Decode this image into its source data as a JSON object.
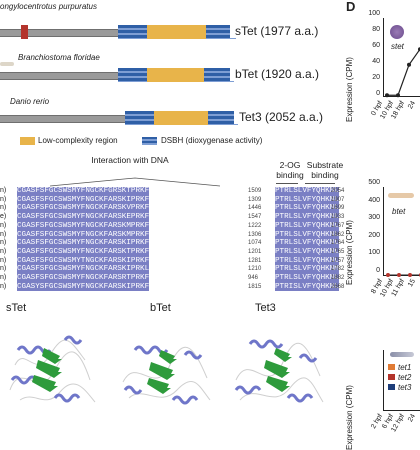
{
  "panel_d_label": "D",
  "domain_panel": {
    "species": [
      {
        "name": "ongylocentrotus purpuratus",
        "label": "sTet (1977 a.a.)"
      },
      {
        "name": "Branchiostoma floridae",
        "label": "bTet (1920 a.a.)"
      },
      {
        "name": "Danio rerio",
        "label": "Tet3 (2052 a.a.)"
      }
    ],
    "legend": {
      "lowcomplexity": "Low-complexity region",
      "dsbh": "DSBH (dioxygenase activity)"
    },
    "colors": {
      "lowcomplexity": "#e8b44a",
      "dsbh": "#2f5fa6",
      "backbone": "#8a8a8a",
      "red_domain": "#b3342c"
    }
  },
  "alignment": {
    "header_dna": "Interaction with DNA",
    "header_2og": "2-OG binding",
    "header_substrate": "Substrate binding",
    "row_labels": [
      "n)",
      "n)",
      "n)",
      "e)",
      "n)",
      "n)",
      "n)",
      "n)",
      "n)",
      "n)",
      "n)",
      "n)"
    ],
    "left_seqs": [
      "CGASFSFGCSWSMYFNGCKFGRSKTPRKF",
      "CGASFSFGCSWSMYFNGCKFARSKIPRKF",
      "CGASFSFGCSWSMYFNGCKFARSKVPRKF",
      "CGASFSFGCSWSMYFNGCKFARSKEPRKF",
      "CGASFSFGCSWSMYFNGCKFARSKMPRKF",
      "CGASFSFGCSWSMYFNGCKFARSKMPRKF",
      "CGASFSFGCSWSMYFNGCKFARSKIPRKF",
      "CGASFSFGCSWSMYFNGCKFARSKTPRKF",
      "CGASFSFGCSWSMYTNGCKFARSKIPRKF",
      "CGASFSFGCSWSMYFNGCKFARSKIPRKL",
      "CGASFSFGCSWSMYFNGCKFARSRTPRKF",
      "CGASYSFGCSWSMYFNGCKFARSKIPRKF"
    ],
    "left_nums": [
      "1509",
      "1309",
      "1446",
      "1547",
      "1222",
      "1306",
      "1074",
      "1201",
      "1281",
      "1210",
      "946",
      "1815"
    ],
    "right_seqs": [
      "PTRLSLVFYQHKNL",
      "PTRLSLVFYQHKNL",
      "PTRLSLVFYQHKNL",
      "PTRLSLVFYQHKNL",
      "PTRLSLVFYQHKNL",
      "PTRLSLVFYQHKNL",
      "PTRLSLVFYQHKNL",
      "PTRLSLVFYQHKNL",
      "PTRLSLVFYQHKNL",
      "PTRLSLVFYQHKNM",
      "PTRLSLVFYQHKNL",
      "PTRISLVFYQHKNL"
    ],
    "right_nums": [
      "2054",
      "1907",
      "1699",
      "1933",
      "1767",
      "1862",
      "1764",
      "1765",
      "1757",
      "1782",
      "1882",
      "2668"
    ],
    "colors": {
      "conserved": "#7a7fc4",
      "header_line": "#555555"
    }
  },
  "structures": {
    "labels": [
      "sTet",
      "bTet",
      "Tet3"
    ],
    "colors": {
      "helix": "#6f76c9",
      "sheet": "#2e9b3c",
      "coil": "#c8c8c8"
    }
  },
  "expression_panels": {
    "ylabel": "Expression (CPM)",
    "top": {
      "gene": "stet",
      "yticks": [
        "0",
        "20",
        "40",
        "60",
        "80",
        "100"
      ],
      "xticks": [
        "0 hpf",
        "10 hpf",
        "18 hpf",
        "24"
      ],
      "values": [
        1,
        1,
        40,
        60
      ]
    },
    "middle": {
      "gene": "btet",
      "yticks": [
        "0",
        "100",
        "200",
        "300",
        "400",
        "500"
      ],
      "xticks": [
        "8 hpf",
        "10 hpf",
        "11 hpf",
        "15"
      ]
    },
    "bottom": {
      "genes": [
        "tet1",
        "tet2",
        "tet3"
      ],
      "gene_colors": [
        "#e07b35",
        "#b3342c",
        "#1d3d7a"
      ],
      "xticks": [
        "2 hpf",
        "6 hpf",
        "12 hpf",
        "24"
      ]
    }
  }
}
